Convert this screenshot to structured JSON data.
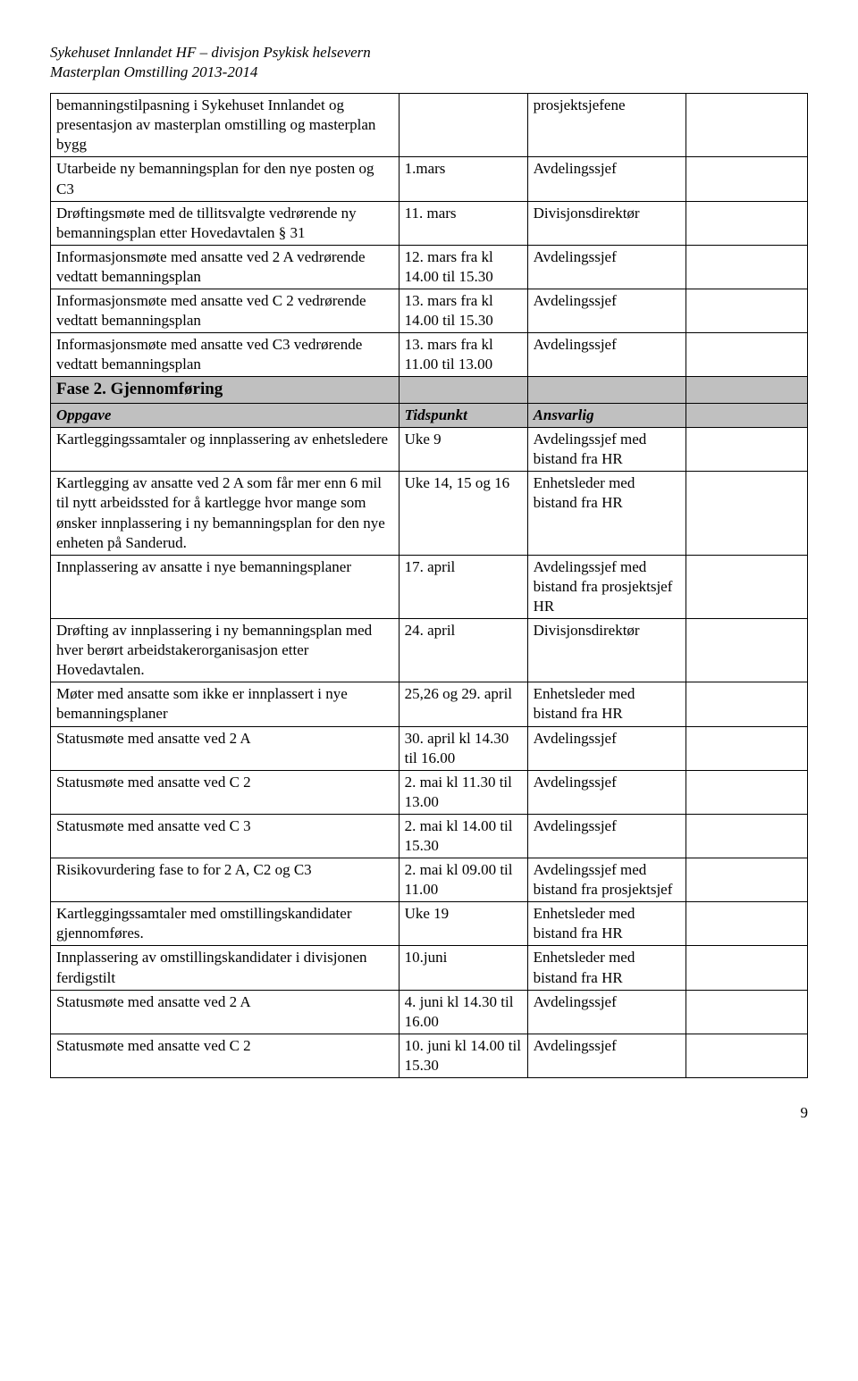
{
  "header": {
    "line1": "Sykehuset Innlandet HF – divisjon Psykisk helsevern",
    "line2": "Masterplan Omstilling 2013-2014"
  },
  "table1": {
    "rows": [
      {
        "c1": "bemanningstilpasning i Sykehuset Innlandet og presentasjon av masterplan omstilling og masterplan bygg",
        "c2": "",
        "c3": "prosjektsjefene",
        "c4": ""
      },
      {
        "c1": "Utarbeide ny bemanningsplan for den nye posten og C3",
        "c2": "1.mars",
        "c3": "Avdelingssjef",
        "c4": ""
      },
      {
        "c1": "Drøftingsmøte med de tillitsvalgte vedrørende ny bemanningsplan etter Hovedavtalen § 31",
        "c2": "11. mars",
        "c3": "Divisjonsdirektør",
        "c4": ""
      },
      {
        "c1": "Informasjonsmøte med ansatte ved 2 A vedrørende vedtatt bemanningsplan",
        "c2": "12. mars fra kl 14.00 til 15.30",
        "c3": "Avdelingssjef",
        "c4": ""
      },
      {
        "c1": "Informasjonsmøte med ansatte ved C 2 vedrørende vedtatt bemanningsplan",
        "c2": "13. mars fra kl 14.00 til 15.30",
        "c3": "Avdelingssjef",
        "c4": ""
      },
      {
        "c1": "Informasjonsmøte med ansatte ved C3 vedrørende vedtatt bemanningsplan",
        "c2": "13. mars fra kl 11.00 til 13.00",
        "c3": "Avdelingssjef",
        "c4": ""
      }
    ]
  },
  "section": {
    "title": "Fase 2. Gjennomføring"
  },
  "section_head": {
    "c1": "Oppgave",
    "c2": "Tidspunkt",
    "c3": "Ansvarlig",
    "c4": ""
  },
  "table2": {
    "rows": [
      {
        "c1": "Kartleggingssamtaler og innplassering av enhetsledere",
        "c2": "Uke 9",
        "c3": "Avdelingssjef med bistand fra HR",
        "c4": ""
      },
      {
        "c1": "Kartlegging av ansatte ved 2 A som får mer enn 6 mil til nytt arbeidssted for å kartlegge hvor mange som ønsker innplassering i ny bemanningsplan for den nye enheten på Sanderud.",
        "c2": "Uke 14, 15 og 16",
        "c3": "Enhetsleder med bistand fra HR",
        "c4": ""
      },
      {
        "c1": "Innplassering av ansatte i nye bemanningsplaner",
        "c2": "17. april",
        "c3": "Avdelingssjef med bistand fra prosjektsjef HR",
        "c4": ""
      },
      {
        "c1": "Drøfting av innplassering i ny bemanningsplan med hver berørt arbeidstakerorganisasjon etter Hovedavtalen.",
        "c2": "24. april",
        "c3": "Divisjonsdirektør",
        "c4": ""
      },
      {
        "c1": "Møter med ansatte som ikke er innplassert i nye bemanningsplaner",
        "c2": "25,26 og 29. april",
        "c3": "Enhetsleder med bistand fra HR",
        "c4": ""
      },
      {
        "c1": "Statusmøte med ansatte ved 2 A",
        "c2": "30. april kl 14.30 til 16.00",
        "c3": "Avdelingssjef",
        "c4": ""
      },
      {
        "c1": "Statusmøte med ansatte ved C 2",
        "c2": "2. mai kl 11.30 til 13.00",
        "c3": "Avdelingssjef",
        "c4": ""
      },
      {
        "c1": "Statusmøte med ansatte ved C 3",
        "c2": "2. mai kl 14.00 til 15.30",
        "c3": "Avdelingssjef",
        "c4": ""
      },
      {
        "c1": "Risikovurdering fase to for 2 A, C2 og C3",
        "c2": "2. mai kl 09.00 til 11.00",
        "c3": "Avdelingssjef med bistand fra prosjektsjef",
        "c4": ""
      },
      {
        "c1": "Kartleggingssamtaler med omstillingskandidater gjennomføres.",
        "c2": "Uke 19",
        "c3": "Enhetsleder med bistand fra HR",
        "c4": ""
      },
      {
        "c1": "Innplassering av omstillingskandidater i divisjonen ferdigstilt",
        "c2": "10.juni",
        "c3": "Enhetsleder med bistand fra HR",
        "c4": ""
      },
      {
        "c1": "Statusmøte med ansatte ved 2 A",
        "c2": "4. juni kl 14.30 til 16.00",
        "c3": "Avdelingssjef",
        "c4": ""
      },
      {
        "c1": "Statusmøte med ansatte ved C 2",
        "c2": "10. juni kl 14.00 til 15.30",
        "c3": "Avdelingssjef",
        "c4": ""
      }
    ]
  },
  "page_number": "9"
}
